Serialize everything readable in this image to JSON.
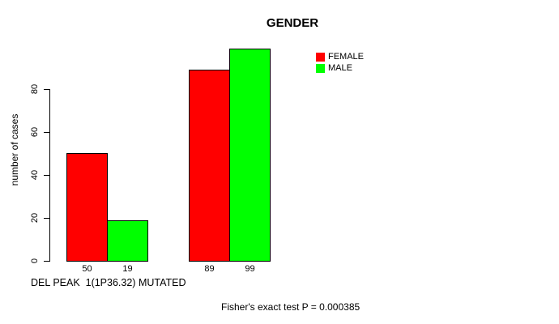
{
  "chart_data": {
    "type": "bar",
    "title": "GENDER",
    "ylabel": "number of cases",
    "xlabel": "DEL PEAK  1(1P36.32) MUTATED",
    "annotation": "Fisher's exact test P = 0.000385",
    "categories": [
      "",
      ""
    ],
    "series": [
      {
        "name": "FEMALE",
        "color": "#FF0000",
        "values": [
          50,
          89
        ]
      },
      {
        "name": "MALE",
        "color": "#00FF00",
        "values": [
          19,
          99
        ]
      }
    ],
    "bar_value_labels": [
      "50",
      "19",
      "89",
      "99"
    ],
    "yticks": [
      0,
      20,
      40,
      60,
      80
    ],
    "ylim": [
      0,
      80
    ],
    "grid": "off",
    "legend_position": "top-right",
    "background_color": "#FFFFFF",
    "text_color": "#000000"
  }
}
